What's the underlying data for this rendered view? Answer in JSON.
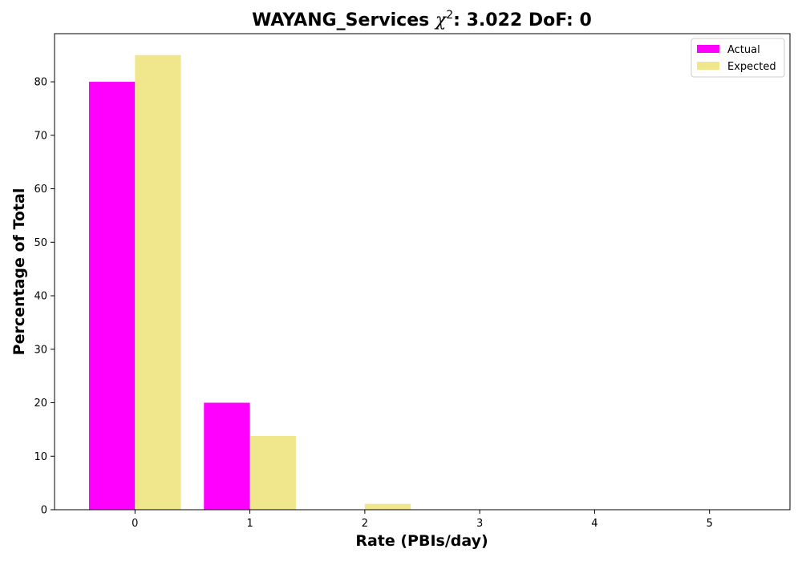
{
  "chart_data": {
    "type": "bar",
    "title_prefix": "WAYANG_Services ",
    "title_chi": "χ",
    "title_sup": "2",
    "title_suffix": ": 3.022 DoF: 0",
    "xlabel": "Rate (PBIs/day)",
    "ylabel": "Percentage of Total",
    "categories": [
      "0",
      "1",
      "2",
      "3",
      "4",
      "5"
    ],
    "x": [
      0,
      1,
      2,
      3,
      4,
      5
    ],
    "xlim": [
      -0.7,
      5.7
    ],
    "ylim": [
      0,
      89
    ],
    "yticks": [
      0,
      10,
      20,
      30,
      40,
      50,
      60,
      70,
      80
    ],
    "grid": false,
    "legend_position": "top-right",
    "series": [
      {
        "name": "Actual",
        "color": "#ff00ff",
        "values": [
          80.0,
          20.0,
          0.0,
          0.0,
          0.0,
          0.0
        ]
      },
      {
        "name": "Expected",
        "color": "#f0e68c",
        "values": [
          85.0,
          13.8,
          1.1,
          0.06,
          0.0,
          0.0
        ]
      }
    ]
  }
}
